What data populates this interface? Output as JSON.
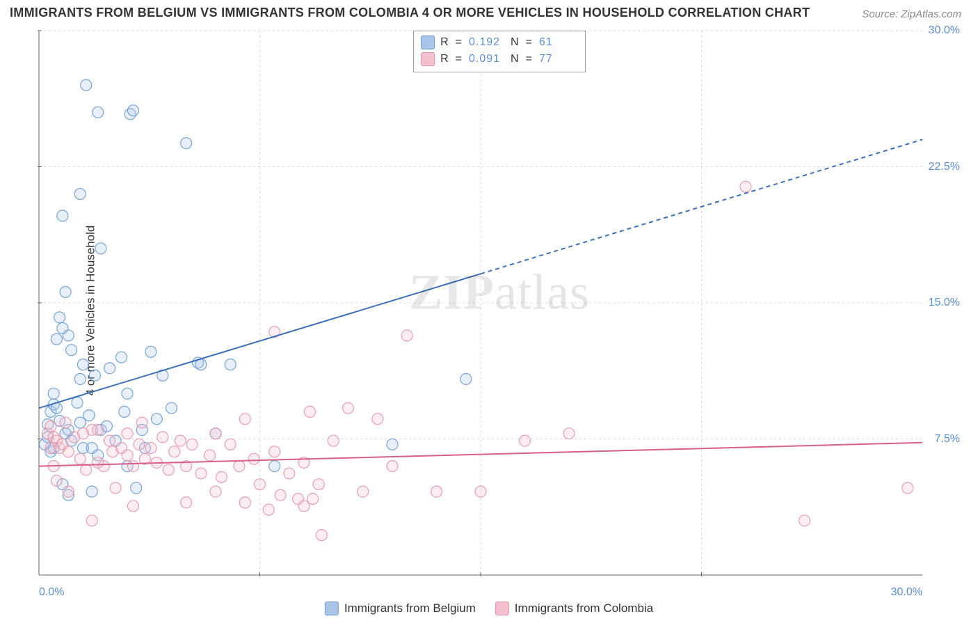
{
  "title": "IMMIGRANTS FROM BELGIUM VS IMMIGRANTS FROM COLOMBIA 4 OR MORE VEHICLES IN HOUSEHOLD CORRELATION CHART",
  "source_prefix": "Source: ",
  "source_link": "ZipAtlas.com",
  "ylabel": "4 or more Vehicles in Household",
  "watermark_a": "ZIP",
  "watermark_b": "atlas",
  "chart": {
    "type": "scatter",
    "xlim": [
      0,
      30
    ],
    "ylim": [
      0,
      30
    ],
    "x_axis_format_pct": true,
    "y_axis_format_pct": true,
    "xticks": [
      0.0,
      30.0
    ],
    "yticks": [
      7.5,
      15.0,
      22.5,
      30.0
    ],
    "grid_color": "#d9d9d9",
    "grid_dash": "3,4",
    "axis_color": "#666666",
    "background_color": "#ffffff",
    "tick_label_color": "#5b8dd6",
    "marker_radius": 8,
    "marker_stroke_width": 1.2,
    "marker_fill_opacity": 0.28,
    "marker_stroke_opacity": 0.9
  },
  "series": [
    {
      "id": "belgium",
      "name": "Immigrants from Belgium",
      "color_stroke": "#6a9ad0",
      "color_fill": "#a8c5e8",
      "R_label": "R",
      "R": "0.192",
      "N_label": "N",
      "N": "61",
      "trend": {
        "x0": 0,
        "y0": 9.2,
        "x1": 30,
        "y1": 24.0,
        "solid_until_x": 15.0,
        "stroke": "#3a6fb7",
        "width": 2,
        "dash": "6,5"
      },
      "points": [
        [
          0.2,
          7.2
        ],
        [
          0.3,
          7.6
        ],
        [
          0.3,
          8.3
        ],
        [
          0.4,
          6.8
        ],
        [
          0.4,
          9.0
        ],
        [
          0.5,
          7.0
        ],
        [
          0.5,
          9.4
        ],
        [
          0.5,
          10.0
        ],
        [
          0.6,
          9.2
        ],
        [
          0.6,
          13.0
        ],
        [
          0.7,
          8.5
        ],
        [
          0.7,
          14.2
        ],
        [
          0.8,
          5.0
        ],
        [
          0.8,
          13.6
        ],
        [
          0.8,
          19.8
        ],
        [
          0.9,
          7.8
        ],
        [
          0.9,
          15.6
        ],
        [
          1.0,
          4.4
        ],
        [
          1.0,
          8.0
        ],
        [
          1.0,
          13.2
        ],
        [
          1.1,
          7.4
        ],
        [
          1.1,
          12.4
        ],
        [
          1.3,
          9.5
        ],
        [
          1.4,
          8.4
        ],
        [
          1.4,
          10.8
        ],
        [
          1.4,
          21.0
        ],
        [
          1.5,
          7.0
        ],
        [
          1.5,
          11.6
        ],
        [
          1.6,
          27.0
        ],
        [
          1.7,
          8.8
        ],
        [
          1.8,
          4.6
        ],
        [
          1.8,
          7.0
        ],
        [
          1.9,
          11.0
        ],
        [
          2.0,
          6.6
        ],
        [
          2.0,
          25.5
        ],
        [
          2.1,
          8.0
        ],
        [
          2.1,
          18.0
        ],
        [
          2.3,
          8.2
        ],
        [
          2.4,
          11.4
        ],
        [
          2.6,
          7.4
        ],
        [
          2.8,
          12.0
        ],
        [
          2.9,
          9.0
        ],
        [
          3.0,
          6.0
        ],
        [
          3.0,
          10.0
        ],
        [
          3.1,
          25.4
        ],
        [
          3.2,
          25.6
        ],
        [
          3.3,
          4.8
        ],
        [
          3.5,
          8.0
        ],
        [
          3.6,
          7.0
        ],
        [
          3.8,
          12.3
        ],
        [
          4.0,
          8.6
        ],
        [
          4.2,
          11.0
        ],
        [
          4.5,
          9.2
        ],
        [
          5.0,
          23.8
        ],
        [
          5.4,
          11.7
        ],
        [
          5.5,
          11.6
        ],
        [
          6.0,
          7.8
        ],
        [
          6.5,
          11.6
        ],
        [
          8.0,
          6.0
        ],
        [
          12.0,
          7.2
        ],
        [
          14.5,
          10.8
        ]
      ]
    },
    {
      "id": "colombia",
      "name": "Immigrants from Colombia",
      "color_stroke": "#e394ab",
      "color_fill": "#f3c0ce",
      "R_label": "R",
      "R": "0.091",
      "N_label": "N",
      "N": "77",
      "trend": {
        "x0": 0,
        "y0": 6.0,
        "x1": 30,
        "y1": 7.3,
        "solid_until_x": 30,
        "stroke": "#d85f84",
        "width": 2,
        "dash": ""
      },
      "points": [
        [
          0.3,
          7.8
        ],
        [
          0.4,
          7.0
        ],
        [
          0.4,
          8.2
        ],
        [
          0.5,
          6.0
        ],
        [
          0.5,
          7.6
        ],
        [
          0.6,
          5.2
        ],
        [
          0.6,
          7.4
        ],
        [
          0.7,
          7.0
        ],
        [
          0.8,
          7.2
        ],
        [
          0.9,
          8.4
        ],
        [
          1.0,
          6.8
        ],
        [
          1.0,
          4.6
        ],
        [
          1.2,
          7.6
        ],
        [
          1.4,
          6.4
        ],
        [
          1.5,
          7.8
        ],
        [
          1.6,
          5.8
        ],
        [
          1.8,
          8.0
        ],
        [
          1.8,
          3.0
        ],
        [
          2.0,
          6.2
        ],
        [
          2.0,
          8.0
        ],
        [
          2.2,
          6.0
        ],
        [
          2.4,
          7.4
        ],
        [
          2.5,
          6.8
        ],
        [
          2.6,
          4.8
        ],
        [
          2.8,
          7.0
        ],
        [
          3.0,
          6.6
        ],
        [
          3.0,
          7.8
        ],
        [
          3.2,
          6.0
        ],
        [
          3.2,
          3.8
        ],
        [
          3.4,
          7.2
        ],
        [
          3.5,
          8.4
        ],
        [
          3.6,
          6.4
        ],
        [
          3.8,
          7.0
        ],
        [
          4.0,
          6.2
        ],
        [
          4.2,
          7.6
        ],
        [
          4.4,
          5.8
        ],
        [
          4.6,
          6.8
        ],
        [
          4.8,
          7.4
        ],
        [
          5.0,
          6.0
        ],
        [
          5.0,
          4.0
        ],
        [
          5.2,
          7.2
        ],
        [
          5.5,
          5.6
        ],
        [
          5.8,
          6.6
        ],
        [
          6.0,
          7.8
        ],
        [
          6.0,
          4.6
        ],
        [
          6.2,
          5.4
        ],
        [
          6.5,
          7.2
        ],
        [
          6.8,
          6.0
        ],
        [
          7.0,
          8.6
        ],
        [
          7.0,
          4.0
        ],
        [
          7.3,
          6.4
        ],
        [
          7.5,
          5.0
        ],
        [
          7.8,
          3.6
        ],
        [
          8.0,
          6.8
        ],
        [
          8.0,
          13.4
        ],
        [
          8.2,
          4.4
        ],
        [
          8.5,
          5.6
        ],
        [
          8.8,
          4.2
        ],
        [
          9.0,
          6.2
        ],
        [
          9.0,
          3.8
        ],
        [
          9.2,
          9.0
        ],
        [
          9.3,
          4.2
        ],
        [
          9.5,
          5.0
        ],
        [
          9.6,
          2.2
        ],
        [
          10.0,
          7.4
        ],
        [
          10.5,
          9.2
        ],
        [
          11.0,
          4.6
        ],
        [
          11.5,
          8.6
        ],
        [
          12.0,
          6.0
        ],
        [
          12.5,
          13.2
        ],
        [
          13.5,
          4.6
        ],
        [
          15.0,
          4.6
        ],
        [
          16.5,
          7.4
        ],
        [
          18.0,
          7.8
        ],
        [
          24.0,
          21.4
        ],
        [
          26.0,
          3.0
        ],
        [
          29.5,
          4.8
        ]
      ]
    }
  ],
  "legend_box": {
    "eq": " = "
  },
  "footer_legend_label_a": "Immigrants from Belgium",
  "footer_legend_label_b": "Immigrants from Colombia"
}
